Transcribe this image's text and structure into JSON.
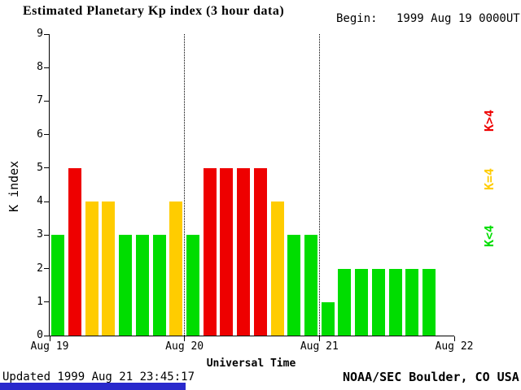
{
  "title": "Estimated Planetary Kp index (3 hour data)",
  "begin_label": "Begin:",
  "begin_value": "1999 Aug 19 0000UT",
  "footer": {
    "updated": "Updated 1999 Aug 21 23:45:17",
    "source": "NOAA/SEC Boulder, CO USA"
  },
  "colors": {
    "low": "#00dd00",
    "mid": "#ffcc00",
    "high": "#ee0000",
    "footer_bar": "#2929cc",
    "axis": "#000000"
  },
  "chart_data": {
    "type": "bar",
    "title": "Estimated Planetary Kp index (3 hour data)",
    "xlabel": "Universal Time",
    "ylabel": "K index",
    "ylim": [
      0,
      9
    ],
    "yticks": [
      0,
      1,
      2,
      3,
      4,
      5,
      6,
      7,
      8,
      9
    ],
    "x_tick_labels": [
      "Aug 19",
      "Aug 20",
      "Aug 21",
      "Aug 22"
    ],
    "days": 3,
    "slots_per_day": 8,
    "hours_per_slot": 3,
    "values": [
      3,
      5,
      4,
      4,
      3,
      3,
      3,
      4,
      3,
      5,
      5,
      5,
      5,
      4,
      3,
      3,
      1,
      2,
      2,
      2,
      2,
      2,
      2,
      null
    ],
    "color_rule": "value<4 green, value=4 yellow, value>4 red",
    "grid": "off",
    "day_boundary_guides": [
      "Aug 20",
      "Aug 21"
    ],
    "legend_position": "right",
    "legend": [
      {
        "label": "K>4",
        "color": "#ee0000"
      },
      {
        "label": "K=4",
        "color": "#ffcc00"
      },
      {
        "label": "K<4",
        "color": "#00dd00"
      }
    ]
  }
}
